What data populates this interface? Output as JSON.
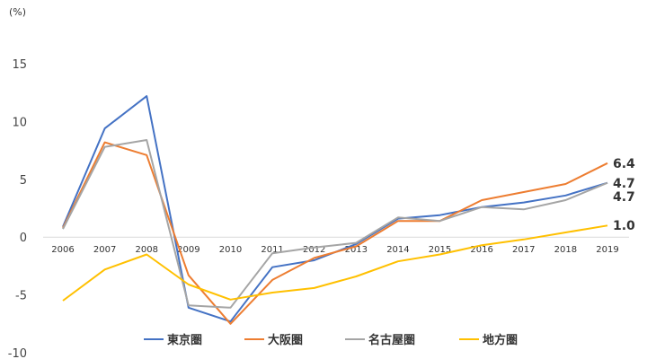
{
  "chart_data": {
    "type": "line",
    "unit_label": "(%)",
    "x": [
      "2006",
      "2007",
      "2008",
      "2009",
      "2010",
      "2011",
      "2012",
      "2013",
      "2014",
      "2015",
      "2016",
      "2017",
      "2018",
      "2019"
    ],
    "ylim": [
      -10,
      15
    ],
    "yticks": [
      15,
      10,
      5,
      0,
      -5,
      -10
    ],
    "grid": false,
    "legend_position": "bottom",
    "series": [
      {
        "name": "東京圏",
        "color": "#4472C4",
        "values": [
          0.9,
          9.4,
          12.2,
          -6.1,
          -7.3,
          -2.6,
          -2.0,
          -0.6,
          1.6,
          1.9,
          2.6,
          3.0,
          3.6,
          4.7
        ]
      },
      {
        "name": "大阪圏",
        "color": "#ED7D31",
        "values": [
          0.8,
          8.2,
          7.1,
          -3.3,
          -7.5,
          -3.7,
          -1.8,
          -0.8,
          1.4,
          1.4,
          3.2,
          3.9,
          4.6,
          6.4
        ]
      },
      {
        "name": "名古屋圏",
        "color": "#A5A5A5",
        "values": [
          0.7,
          7.8,
          8.4,
          -5.9,
          -6.1,
          -1.4,
          -0.9,
          -0.5,
          1.7,
          1.4,
          2.6,
          2.4,
          3.2,
          4.7
        ]
      },
      {
        "name": "地方圏",
        "color": "#FFC000",
        "values": [
          -5.5,
          -2.8,
          -1.5,
          -4.1,
          -5.4,
          -4.8,
          -4.4,
          -3.4,
          -2.1,
          -1.5,
          -0.7,
          -0.2,
          0.4,
          1.0
        ]
      }
    ],
    "end_labels": [
      "6.4",
      "4.7",
      "4.7",
      "1.0"
    ]
  }
}
